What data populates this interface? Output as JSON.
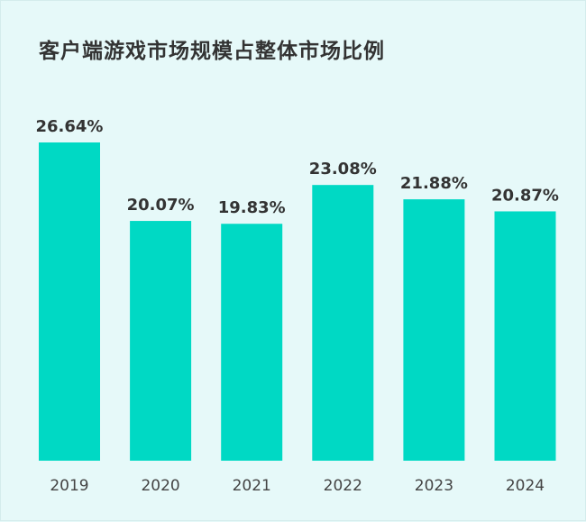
{
  "chart_data": {
    "type": "bar",
    "title": "客户端游戏市场规模占整体市场比例",
    "categories": [
      "2019",
      "2020",
      "2021",
      "2022",
      "2023",
      "2024"
    ],
    "values": [
      26.64,
      20.07,
      19.83,
      23.08,
      21.88,
      20.87
    ],
    "data_labels": [
      "26.64%",
      "20.07%",
      "19.83%",
      "23.08%",
      "21.88%",
      "20.87%"
    ],
    "xlabel": "",
    "ylabel": "",
    "ylim": [
      0,
      26.64
    ],
    "grid": false,
    "colors": {
      "bar": "#00d9c4",
      "background": "#e6f9f9",
      "text": "#333333"
    }
  }
}
